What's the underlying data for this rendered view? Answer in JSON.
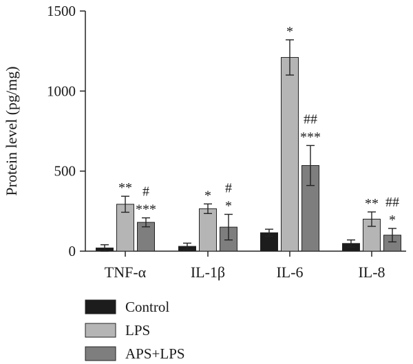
{
  "chart_data": {
    "type": "bar",
    "title": "",
    "xlabel": "",
    "ylabel": "Protein level (pg/mg)",
    "ylim": [
      0,
      1500
    ],
    "yticks": [
      0,
      500,
      1000,
      1500
    ],
    "categories": [
      "TNF-α",
      "IL-1β",
      "IL-6",
      "IL-8"
    ],
    "series": [
      {
        "name": "Control",
        "color": "#1c1c1c",
        "values": [
          20,
          30,
          115,
          48
        ],
        "errors": [
          20,
          20,
          22,
          22
        ],
        "annotations": [
          "",
          "",
          "",
          ""
        ]
      },
      {
        "name": "LPS",
        "color": "#b5b5b5",
        "values": [
          293,
          265,
          1210,
          200
        ],
        "errors": [
          50,
          30,
          110,
          45
        ],
        "annotations": [
          "**",
          "*",
          "*",
          "**"
        ]
      },
      {
        "name": "APS+LPS",
        "color": "#7e7e7e",
        "values": [
          180,
          150,
          535,
          100
        ],
        "errors": [
          28,
          80,
          125,
          42
        ],
        "annotations": [
          "***",
          "*",
          "***",
          "*"
        ],
        "annotations_upper": [
          "#",
          "#",
          "##",
          "##"
        ]
      }
    ],
    "legend": {
      "placement": "bottom-left"
    },
    "grid": false
  }
}
